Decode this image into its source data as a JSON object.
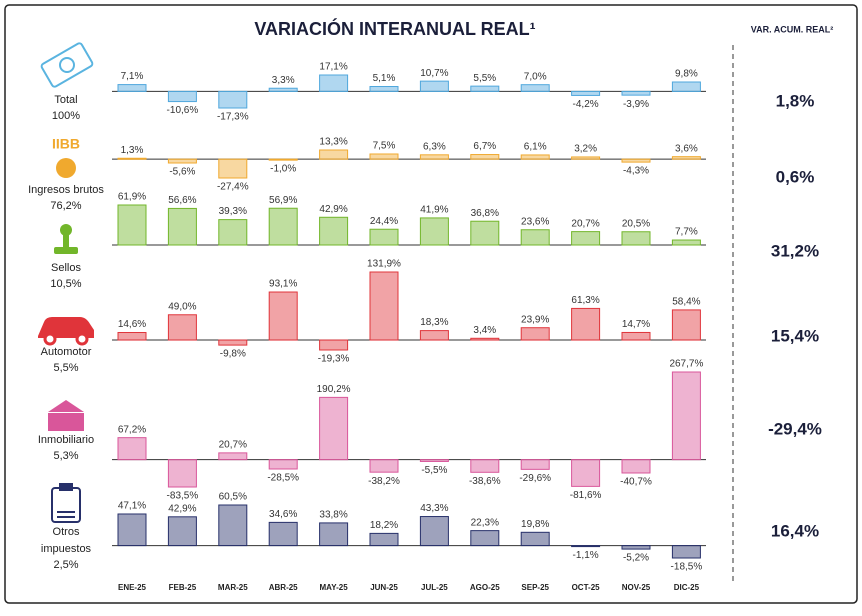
{
  "chart_data": {
    "type": "bar",
    "title": "VARIACIÓN INTERANUAL REAL¹",
    "accum_title": "VAR. ACUM. REAL²",
    "categories": [
      "ENE-25",
      "FEB-25",
      "MAR-25",
      "ABR-25",
      "MAY-25",
      "JUN-25",
      "JUL-25",
      "AGO-25",
      "SEP-25",
      "OCT-25",
      "NOV-25",
      "DIC-25"
    ],
    "series": [
      {
        "name": "Total",
        "weight": "100%",
        "color": "#4fa7dd",
        "values": [
          7.1,
          -10.6,
          -17.3,
          3.3,
          17.1,
          5.1,
          10.7,
          5.5,
          7.0,
          -4.2,
          -3.9,
          9.8
        ],
        "value_labels": [
          "7,1%",
          "-10,6%",
          "-17,3%",
          "3,3%",
          "17,1%",
          "5,1%",
          "10,7%",
          "5,5%",
          "7,0%",
          "-4,2%",
          "-3,9%",
          "9,8%"
        ],
        "accum": {
          "value": 1.8,
          "label": "1,8%"
        }
      },
      {
        "name": "Ingresos brutos",
        "icon_label": "IIBB",
        "weight": "76,2%",
        "color": "#f0a92e",
        "values": [
          1.3,
          -5.6,
          -27.4,
          -1.0,
          13.3,
          7.5,
          6.3,
          6.7,
          6.1,
          3.2,
          -4.3,
          3.6
        ],
        "value_labels": [
          "1,3%",
          "-5,6%",
          "-27,4%",
          "-1,0%",
          "13,3%",
          "7,5%",
          "6,3%",
          "6,7%",
          "6,1%",
          "3,2%",
          "-4,3%",
          "3,6%"
        ],
        "accum": {
          "value": 0.6,
          "label": "0,6%"
        }
      },
      {
        "name": "Sellos",
        "weight": "10,5%",
        "color": "#72b62a",
        "values": [
          61.9,
          56.6,
          39.3,
          56.9,
          42.9,
          24.4,
          41.9,
          36.8,
          23.6,
          20.7,
          20.5,
          7.7
        ],
        "value_labels": [
          "61,9%",
          "56,6%",
          "39,3%",
          "56,9%",
          "42,9%",
          "24,4%",
          "41,9%",
          "36,8%",
          "23,6%",
          "20,7%",
          "20,5%",
          "7,7%"
        ],
        "accum": {
          "value": 31.2,
          "label": "31,2%"
        }
      },
      {
        "name": "Automotor",
        "weight": "5,5%",
        "color": "#e0343a",
        "values": [
          14.6,
          49.0,
          -9.8,
          93.1,
          -19.3,
          131.9,
          18.3,
          3.4,
          23.9,
          61.3,
          14.7,
          58.4
        ],
        "value_labels": [
          "14,6%",
          "49,0%",
          "-9,8%",
          "93,1%",
          "-19,3%",
          "131,9%",
          "18,3%",
          "3,4%",
          "23,9%",
          "61,3%",
          "14,7%",
          "58,4%"
        ],
        "accum": {
          "value": 15.4,
          "label": "15,4%"
        }
      },
      {
        "name": "Inmobiliario",
        "weight": "5,3%",
        "color": "#d9569a",
        "values": [
          67.2,
          -83.5,
          20.7,
          -28.5,
          190.2,
          -38.2,
          -5.5,
          -38.6,
          -29.6,
          -81.6,
          -40.7,
          267.7
        ],
        "value_labels": [
          "67,2%",
          "-83,5%",
          "20,7%",
          "-28,5%",
          "190,2%",
          "-38,2%",
          "-5,5%",
          "-38,6%",
          "-29,6%",
          "-81,6%",
          "-40,7%",
          "267,7%"
        ],
        "accum": {
          "value": -29.4,
          "label": "-29,4%"
        }
      },
      {
        "name": "Otros impuestos",
        "weight": "2,5%",
        "color": "#27306a",
        "values": [
          47.1,
          42.9,
          60.5,
          34.6,
          33.8,
          18.2,
          43.3,
          22.3,
          19.8,
          -1.1,
          -5.2,
          -18.5
        ],
        "value_labels": [
          "47,1%",
          "42,9%",
          "60,5%",
          "34,6%",
          "33,8%",
          "18,2%",
          "43,3%",
          "22,3%",
          "19,8%",
          "-1,1%",
          "-5,2%",
          "-18,5%"
        ],
        "accum": {
          "value": 16.4,
          "label": "16,4%"
        }
      }
    ]
  }
}
